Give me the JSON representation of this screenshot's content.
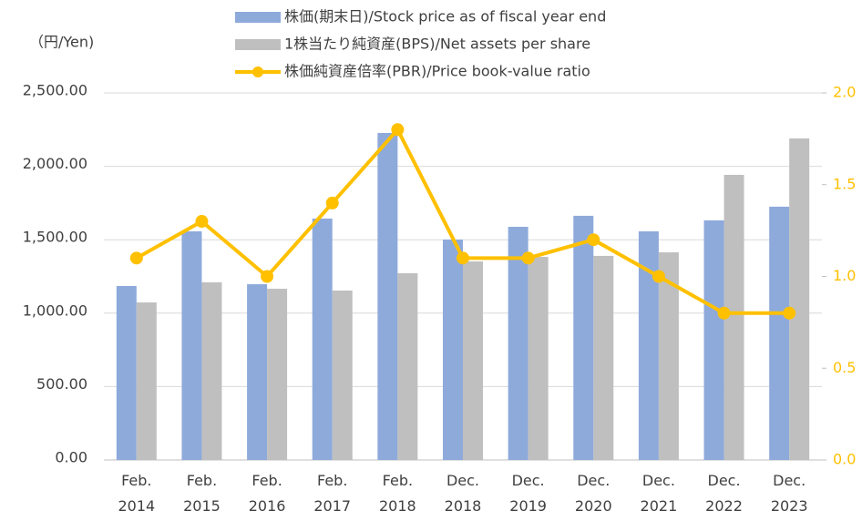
{
  "chart_data": {
    "type": "bar_line",
    "y_unit_label": "（円/Yen)",
    "categories": [
      "Feb. 2014",
      "Feb. 2015",
      "Feb. 2016",
      "Feb. 2017",
      "Feb. 2018",
      "Dec. 2018",
      "Dec. 2019",
      "Dec. 2020",
      "Dec. 2021",
      "Dec. 2022",
      "Dec. 2023"
    ],
    "series": [
      {
        "name": "株価(期末日)/Stock price as of fiscal year end",
        "type": "bar",
        "color": "#8eaadb",
        "values": [
          1185,
          1557,
          1197,
          1644,
          2227,
          1501,
          1588,
          1663,
          1557,
          1632,
          1725
        ]
      },
      {
        "name": "1株当たり純資産(BPS)/Net assets per share",
        "type": "bar",
        "color": "#bfbfbf",
        "values": [
          1073,
          1210,
          1166,
          1154,
          1272,
          1352,
          1383,
          1390,
          1414,
          1942,
          2190
        ]
      },
      {
        "name": "株価純資産倍率(PBR)/Price book-value ratio",
        "type": "line",
        "axis": "y2",
        "color": "#ffc000",
        "values": [
          1.1,
          1.3,
          1.0,
          1.4,
          1.8,
          1.1,
          1.1,
          1.2,
          1.0,
          0.8,
          0.8
        ]
      }
    ],
    "ylim": [
      0,
      2500
    ],
    "yticks": [
      {
        "value": 0,
        "label": "0.00"
      },
      {
        "value": 500,
        "label": "500.00"
      },
      {
        "value": 1000,
        "label": "1,000.00"
      },
      {
        "value": 1500,
        "label": "1,500.00"
      },
      {
        "value": 2000,
        "label": "2,000.00"
      },
      {
        "value": 2500,
        "label": "2,500.00"
      }
    ],
    "y2lim": [
      0,
      2.0
    ],
    "y2ticks": [
      {
        "value": 0,
        "label": "0.0"
      },
      0.5,
      {
        "value": 1.0,
        "label": "1.0"
      },
      1.5,
      {
        "value": 2.0,
        "label": "2.0"
      }
    ],
    "grid": true
  }
}
